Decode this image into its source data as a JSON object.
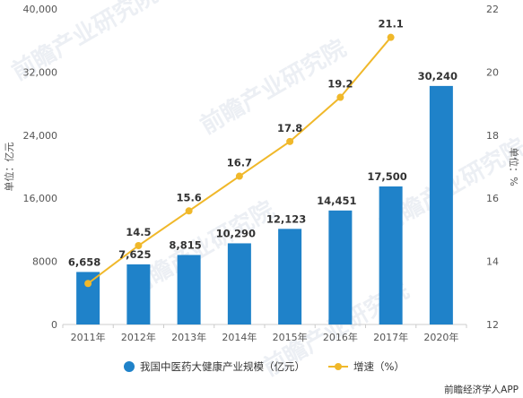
{
  "chart_data": {
    "type": "bar",
    "categories": [
      "2011年",
      "2012年",
      "2013年",
      "2014年",
      "2015年",
      "2016年",
      "2017年",
      "2020年"
    ],
    "series": [
      {
        "name": "我国中医药大健康产业规模（亿元）",
        "type": "bar",
        "axis": "left",
        "values": [
          6658,
          7625,
          8815,
          10290,
          12123,
          14451,
          17500,
          30240
        ],
        "labels": [
          "6,658",
          "7,625",
          "8,815",
          "10,290",
          "12,123",
          "14,451",
          "17,500",
          "30,240"
        ]
      },
      {
        "name": "增速（%）",
        "type": "line",
        "axis": "right",
        "values": [
          13.3,
          14.5,
          15.6,
          16.7,
          17.8,
          19.2,
          21.1,
          null
        ],
        "labels": [
          "",
          "14.5",
          "15.6",
          "16.7",
          "17.8",
          "19.2",
          "21.1",
          ""
        ]
      }
    ],
    "ylabel": "单位：亿元",
    "ylim": [
      0,
      40000
    ],
    "yticks": [
      "0",
      "8000",
      "16,000",
      "24,000",
      "32,000",
      "40,000"
    ],
    "y2label": "单位：%",
    "y2lim": [
      12,
      22
    ],
    "y2ticks": [
      "12",
      "14",
      "16",
      "18",
      "20",
      "22"
    ],
    "grid": false,
    "legend_position": "bottom",
    "colors": {
      "bar": "#1f82c9",
      "line": "#f0b82a",
      "axis": "#cccccc"
    }
  },
  "source": "前瞻经济学人APP",
  "watermark": "前瞻产业研究院"
}
